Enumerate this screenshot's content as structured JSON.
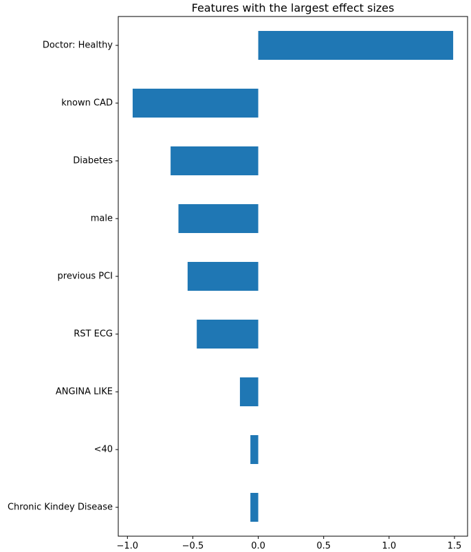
{
  "chart_data": {
    "type": "bar",
    "orientation": "horizontal",
    "title": "Features with the largest effect sizes",
    "xlabel": "",
    "ylabel": "",
    "categories": [
      "Doctor: Healthy",
      "known CAD",
      "Diabetes",
      "male",
      "previous PCI",
      "RST ECG",
      "ANGINA LIKE",
      "<40",
      "Chronic Kindey Disease"
    ],
    "values": [
      1.49,
      -0.96,
      -0.67,
      -0.61,
      -0.54,
      -0.47,
      -0.14,
      -0.06,
      -0.06
    ],
    "xlim": [
      -1.07,
      1.6
    ],
    "xticks": [
      -1.0,
      -0.5,
      0.0,
      0.5,
      1.0,
      1.5
    ],
    "xtick_labels": [
      "−1.0",
      "−0.5",
      "0.0",
      "0.5",
      "1.0",
      "1.5"
    ],
    "bar_color": "#1f77b4",
    "grid": false,
    "legend": "none"
  }
}
